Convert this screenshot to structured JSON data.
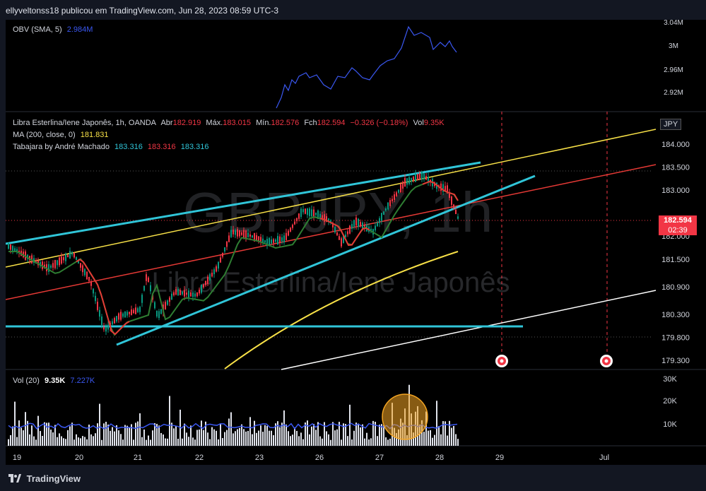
{
  "header": {
    "publisher": "ellyveltonss18 publicou em TradingView.com, Jun 28, 2023 08:59 UTC-3"
  },
  "obv": {
    "label": "OBV (SMA, 5)",
    "value": "2.984M",
    "ticks": [
      "3.04M",
      "3M",
      "2.96M",
      "2.92M"
    ]
  },
  "symbol": {
    "name": "Libra Esterlina/Iene Japonês, 1h, OANDA",
    "open_label": "Abr",
    "open": "182.919",
    "high_label": "Máx.",
    "high": "183.015",
    "low_label": "Mín.",
    "low": "182.576",
    "close_label": "Fch",
    "close": "182.594",
    "change": "−0.326 (−0.18%)",
    "vol_label": "Vol",
    "vol": "9.35K",
    "currency": "JPY",
    "price_badge": "182.594",
    "countdown": "02:39"
  },
  "ma": {
    "label": "MA (200, close, 0)",
    "value": "181.831"
  },
  "tabajara": {
    "label": "Tabajara by André Machado",
    "v1": "183.316",
    "v2": "183.316",
    "v3": "183.316"
  },
  "watermark": {
    "ticker": "GBPJPY, 1h",
    "name": "Libra Esterlina/Iene Japonês"
  },
  "price_ticks": [
    "184.000",
    "183.500",
    "183.000",
    "182.000",
    "181.500",
    "180.900",
    "180.300",
    "179.800",
    "179.300"
  ],
  "volume": {
    "label": "Vol (20)",
    "value": "9.35K",
    "ma_value": "7.227K",
    "ticks": [
      "30K",
      "20K",
      "10K"
    ]
  },
  "date_ticks": [
    "19",
    "20",
    "21",
    "22",
    "23",
    "26",
    "27",
    "28",
    "29",
    "Jul"
  ],
  "footer": {
    "brand": "TradingView"
  },
  "colors": {
    "up": "#089981",
    "down": "#f23645",
    "ma200": "#f7e047",
    "obv": "#3a57f0",
    "channel": "#30c5d8",
    "sma_red": "#e53935",
    "sma_green": "#2e7d32",
    "white_line": "#ffffff"
  },
  "chart_data": {
    "type": "candlestick",
    "symbol": "GBPJPY",
    "interval": "1h",
    "y_range": [
      179.1,
      184.4
    ],
    "x_range": [
      "2023-06-19",
      "2023-07-01"
    ],
    "last": {
      "open": 182.919,
      "high": 183.015,
      "low": 182.576,
      "close": 182.594
    },
    "approx_close_path": [
      {
        "x": "19",
        "y": 182.0
      },
      {
        "x": "19.5",
        "y": 181.7
      },
      {
        "x": "20",
        "y": 181.8
      },
      {
        "x": "20.4",
        "y": 180.2
      },
      {
        "x": "20.8",
        "y": 180.6
      },
      {
        "x": "21",
        "y": 181.3
      },
      {
        "x": "21.3",
        "y": 180.1
      },
      {
        "x": "21.6",
        "y": 180.8
      },
      {
        "x": "22",
        "y": 181.1
      },
      {
        "x": "22.3",
        "y": 182.2
      },
      {
        "x": "22.6",
        "y": 182.5
      },
      {
        "x": "23",
        "y": 182.2
      },
      {
        "x": "23.5",
        "y": 182.6
      },
      {
        "x": "26",
        "y": 182.8
      },
      {
        "x": "26.5",
        "y": 182.2
      },
      {
        "x": "26.8",
        "y": 182.6
      },
      {
        "x": "27",
        "y": 182.4
      },
      {
        "x": "27.3",
        "y": 183.0
      },
      {
        "x": "27.6",
        "y": 183.7
      },
      {
        "x": "27.9",
        "y": 183.6
      },
      {
        "x": "28",
        "y": 183.3
      },
      {
        "x": "28.3",
        "y": 182.6
      }
    ],
    "obv_range": [
      2.9,
      3.05
    ],
    "volume_range": [
      0,
      32000
    ]
  }
}
